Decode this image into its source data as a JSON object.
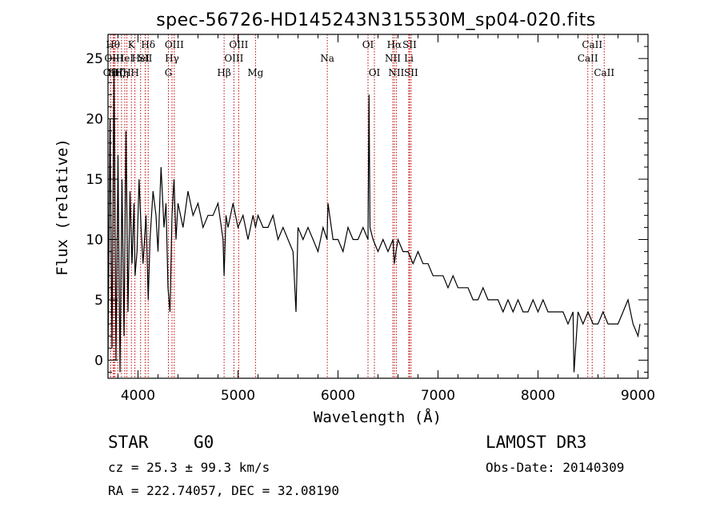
{
  "chart_data": {
    "type": "line",
    "title": "spec-56726-HD145243N315530M_sp04-020.fits",
    "xlabel": "Wavelength (Å)",
    "ylabel": "Flux (relative)",
    "xlim": [
      3700,
      9100
    ],
    "ylim": [
      -1.5,
      27
    ],
    "xticks": [
      4000,
      5000,
      6000,
      7000,
      8000,
      9000
    ],
    "yticks": [
      0,
      5,
      10,
      15,
      20,
      25
    ],
    "spectrum": {
      "x": [
        3700,
        3720,
        3740,
        3760,
        3780,
        3800,
        3820,
        3840,
        3860,
        3880,
        3900,
        3920,
        3940,
        3960,
        3970,
        3990,
        4010,
        4030,
        4050,
        4080,
        4102,
        4120,
        4150,
        4180,
        4200,
        4230,
        4260,
        4280,
        4300,
        4320,
        4340,
        4360,
        4380,
        4400,
        4450,
        4500,
        4550,
        4600,
        4650,
        4700,
        4750,
        4800,
        4850,
        4861,
        4880,
        4900,
        4950,
        5000,
        5050,
        5100,
        5150,
        5175,
        5200,
        5250,
        5300,
        5350,
        5400,
        5450,
        5500,
        5550,
        5580,
        5600,
        5650,
        5700,
        5750,
        5800,
        5850,
        5890,
        5900,
        5950,
        6000,
        6050,
        6100,
        6150,
        6200,
        6250,
        6300,
        6310,
        6320,
        6350,
        6400,
        6450,
        6500,
        6550,
        6563,
        6580,
        6600,
        6650,
        6700,
        6750,
        6800,
        6850,
        6900,
        6950,
        7000,
        7050,
        7100,
        7150,
        7200,
        7250,
        7300,
        7350,
        7400,
        7450,
        7500,
        7550,
        7600,
        7650,
        7700,
        7750,
        7800,
        7850,
        7900,
        7950,
        8000,
        8050,
        8100,
        8150,
        8200,
        8250,
        8300,
        8350,
        8360,
        8400,
        8450,
        8500,
        8550,
        8600,
        8650,
        8700,
        8750,
        8800,
        8850,
        8900,
        8950,
        9000,
        9020
      ],
      "y": [
        0,
        20,
        1,
        24,
        0,
        17,
        -1,
        15,
        2,
        19,
        4,
        14,
        8,
        13,
        7,
        9,
        15,
        11,
        8,
        12,
        5,
        10,
        14,
        12,
        9,
        16,
        11,
        13,
        6,
        4,
        12,
        15,
        10,
        13,
        11,
        14,
        12,
        13,
        11,
        12,
        12,
        13,
        10,
        7,
        12,
        11,
        13,
        11,
        12,
        10,
        12,
        11,
        12,
        11,
        11,
        12,
        10,
        11,
        10,
        9,
        4,
        11,
        10,
        11,
        10,
        9,
        11,
        10,
        13,
        10,
        10,
        9,
        11,
        10,
        10,
        11,
        10,
        22,
        11,
        10,
        9,
        10,
        9,
        10,
        8,
        9,
        10,
        9,
        9,
        8,
        9,
        8,
        8,
        7,
        7,
        7,
        6,
        7,
        6,
        6,
        6,
        5,
        5,
        6,
        5,
        5,
        5,
        4,
        5,
        4,
        5,
        4,
        4,
        5,
        4,
        5,
        4,
        4,
        4,
        4,
        3,
        4,
        -1,
        4,
        3,
        4,
        3,
        3,
        4,
        3,
        3,
        3,
        4,
        5,
        3,
        2,
        3
      ],
      "color": "#000000"
    },
    "line_markers_color": "#c00000",
    "line_markers": [
      {
        "wavelength": 3727,
        "label": "OII",
        "row": 2
      },
      {
        "wavelength": 3750,
        "label": "Hθ",
        "row": 0
      },
      {
        "wavelength": 3760,
        "label": "OIII",
        "row": 1
      },
      {
        "wavelength": 3771,
        "label": "Hη",
        "row": 2
      },
      {
        "wavelength": 3798,
        "label": "Hζ",
        "row": 2
      },
      {
        "wavelength": 3835,
        "label": "Hη",
        "row": 2
      },
      {
        "wavelength": 3868,
        "label": "HeI",
        "row": 1
      },
      {
        "wavelength": 3889,
        "label": "H",
        "row": 2
      },
      {
        "wavelength": 3934,
        "label": "K",
        "row": 0
      },
      {
        "wavelength": 3969,
        "label": "H",
        "row": 2
      },
      {
        "wavelength": 4026,
        "label": "HeI",
        "row": 1
      },
      {
        "wavelength": 4072,
        "label": "SII",
        "row": 1
      },
      {
        "wavelength": 4102,
        "label": "Hδ",
        "row": 0
      },
      {
        "wavelength": 4304,
        "label": "G",
        "row": 2
      },
      {
        "wavelength": 4340,
        "label": "Hγ",
        "row": 1
      },
      {
        "wavelength": 4363,
        "label": "OIII",
        "row": 0
      },
      {
        "wavelength": 4861,
        "label": "Hβ",
        "row": 2
      },
      {
        "wavelength": 4959,
        "label": "OIII",
        "row": 1
      },
      {
        "wavelength": 5007,
        "label": "OIII",
        "row": 0
      },
      {
        "wavelength": 5175,
        "label": "Mg",
        "row": 2
      },
      {
        "wavelength": 5893,
        "label": "Na",
        "row": 1
      },
      {
        "wavelength": 6300,
        "label": "OI",
        "row": 0
      },
      {
        "wavelength": 6364,
        "label": "OI",
        "row": 2
      },
      {
        "wavelength": 6548,
        "label": "NII",
        "row": 1
      },
      {
        "wavelength": 6563,
        "label": "Hα",
        "row": 0
      },
      {
        "wavelength": 6583,
        "label": "NII",
        "row": 2
      },
      {
        "wavelength": 6708,
        "label": "Li",
        "row": 1
      },
      {
        "wavelength": 6716,
        "label": "SII",
        "row": 0
      },
      {
        "wavelength": 6731,
        "label": "SII",
        "row": 2
      },
      {
        "wavelength": 8498,
        "label": "CaII",
        "row": 1
      },
      {
        "wavelength": 8542,
        "label": "CaII",
        "row": 0
      },
      {
        "wavelength": 8662,
        "label": "CaII",
        "row": 2
      }
    ]
  },
  "info": {
    "object_class": "STAR",
    "subclass": "G0",
    "survey": "LAMOST DR3",
    "cz": "cz = 25.3 ± 99.3 km/s",
    "obs_date": "Obs-Date: 20140309",
    "coords": "RA = 222.74057, DEC =  32.08190"
  }
}
